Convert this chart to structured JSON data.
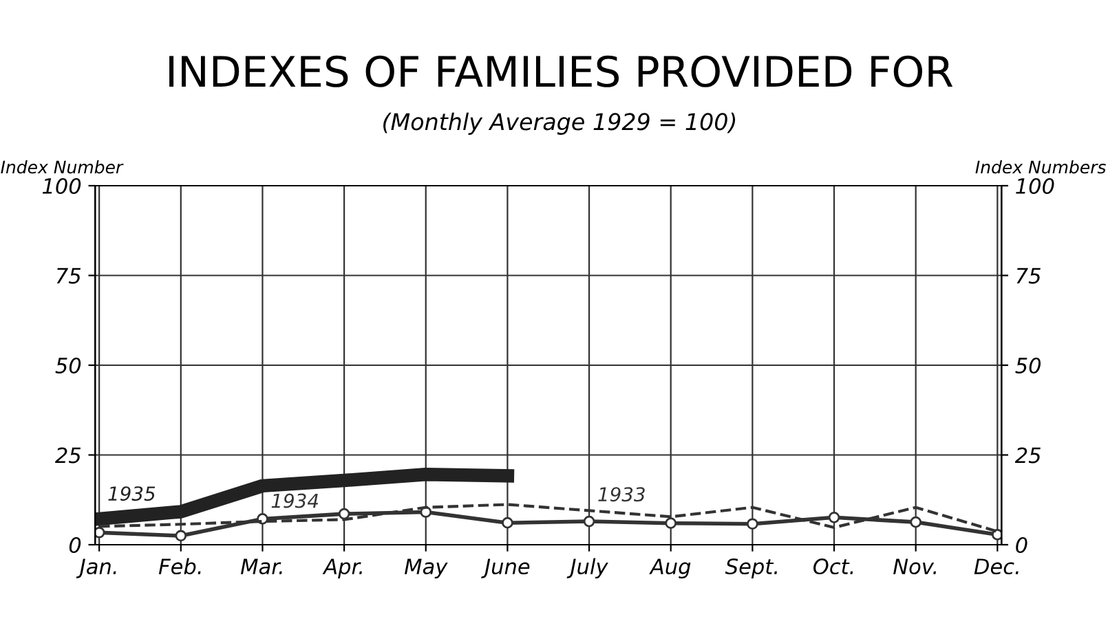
{
  "chart_data": {
    "type": "line",
    "title": "INDEXES OF FAMILIES PROVIDED FOR",
    "subtitle": "(Monthly Average 1929 = 100)",
    "ylabel": "Index Number",
    "y2label": "Index Numbers",
    "categories": [
      "Jan.",
      "Feb.",
      "Mar.",
      "Apr.",
      "May",
      "June",
      "July",
      "Aug",
      "Sept.",
      "Oct.",
      "Nov.",
      "Dec."
    ],
    "series": [
      {
        "name": "1935",
        "color": "#222222",
        "line_style": "solid",
        "marker": "none",
        "values": [
          7.2,
          9.2,
          16.4,
          17.9,
          19.6,
          19.2,
          null,
          null,
          null,
          null,
          null,
          null
        ]
      },
      {
        "name": "1934",
        "color": "#333333",
        "line_style": "solid",
        "marker": "circle",
        "values": [
          3.4,
          2.5,
          7.2,
          8.6,
          9.1,
          6.1,
          6.5,
          6,
          5.8,
          7.6,
          6.3,
          2.8
        ]
      },
      {
        "name": "1933",
        "color": "#333333",
        "line_style": "dashed",
        "marker": "none",
        "values": [
          5.1,
          5.7,
          6.5,
          7,
          10.4,
          11.2,
          9.5,
          7.8,
          10.4,
          4.8,
          10.4,
          3.7
        ]
      }
    ],
    "ylim": [
      0,
      100
    ],
    "yticks": [
      0,
      25,
      50,
      75,
      100
    ],
    "y2lim": [
      0,
      100
    ],
    "y2ticks": [
      0,
      25,
      50,
      75,
      100
    ],
    "grid": true,
    "legend": false
  }
}
